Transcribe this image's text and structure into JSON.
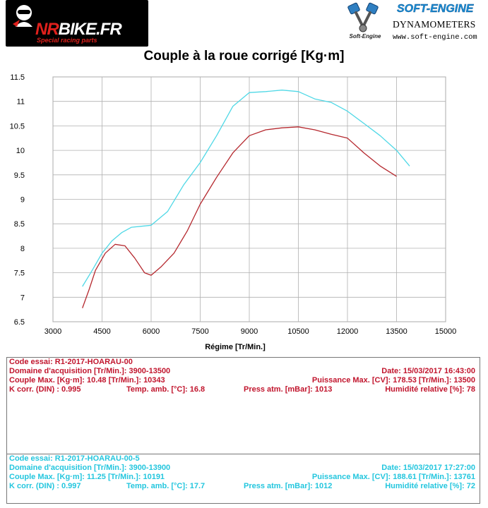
{
  "logos": {
    "left": {
      "brand_prefix": "NR",
      "brand_suffix": "BIKE.FR",
      "tagline": "Special racing parts"
    },
    "right": {
      "name": "SOFT-ENGINE",
      "subtitle": "DYNAMOMETERS",
      "url": "www.soft-engine.com",
      "emblem_text": "Soft-Engine"
    }
  },
  "colors": {
    "run1": "#b5282e",
    "run2": "#4fd8e6",
    "grid": "#b0b0b0",
    "red_text": "#c1152d",
    "cyan_text": "#23c6de"
  },
  "chart_data": {
    "type": "line",
    "title": "Couple à la roue corrigé [Kg·m]",
    "xlabel": "Régime [Tr/Min.]",
    "ylabel": "",
    "xlim": [
      3000,
      15000
    ],
    "ylim": [
      6.5,
      11.5
    ],
    "x_ticks": [
      3000,
      4500,
      6000,
      7500,
      9000,
      10500,
      12000,
      13500,
      15000
    ],
    "y_ticks": [
      6.5,
      7,
      7.5,
      8,
      8.5,
      9,
      9.5,
      10,
      10.5,
      11,
      11.5
    ],
    "x_tick_labels": [
      "3000",
      "4500",
      "6000",
      "7500",
      "9000",
      "10500",
      "12000",
      "13500",
      "15000"
    ],
    "y_tick_labels": [
      "6.5",
      "7",
      "7.5",
      "8",
      "8.5",
      "9",
      "9.5",
      "10",
      "10.5",
      "11",
      "11.5"
    ],
    "grid": true,
    "series": [
      {
        "color": "#b5282e",
        "x": [
          3900,
          4100,
          4300,
          4600,
          4900,
          5200,
          5500,
          5800,
          6000,
          6300,
          6700,
          7100,
          7500,
          8000,
          8500,
          9000,
          9500,
          10000,
          10500,
          11000,
          11500,
          12000,
          12500,
          13000,
          13500
        ],
        "y": [
          6.78,
          7.15,
          7.55,
          7.9,
          8.08,
          8.05,
          7.8,
          7.5,
          7.45,
          7.62,
          7.9,
          8.35,
          8.9,
          9.45,
          9.95,
          10.3,
          10.42,
          10.46,
          10.48,
          10.42,
          10.33,
          10.25,
          9.95,
          9.68,
          9.47
        ]
      },
      {
        "color": "#4fd8e6",
        "x": [
          3900,
          4200,
          4500,
          4800,
          5100,
          5400,
          5700,
          6000,
          6500,
          7000,
          7500,
          8000,
          8500,
          9000,
          9500,
          10000,
          10500,
          11000,
          11500,
          12000,
          12500,
          13000,
          13500,
          13900
        ],
        "y": [
          7.22,
          7.55,
          7.9,
          8.15,
          8.32,
          8.43,
          8.45,
          8.47,
          8.75,
          9.3,
          9.75,
          10.3,
          10.9,
          11.18,
          11.2,
          11.23,
          11.2,
          11.05,
          10.98,
          10.8,
          10.55,
          10.3,
          10.0,
          9.68
        ]
      }
    ]
  },
  "runs": [
    {
      "code": "Code essai: R1-2017-HOARAU-00",
      "domaine": "Domaine d'acquisition [Tr/Min.]: 3900-13500",
      "date": "Date: 15/03/2017   16:43:00",
      "couple": "Couple Max. [Kg·m]: 10.48  [Tr/Min.]: 10343",
      "puissance": "Puissance Max. [CV]: 178.53  [Tr/Min.]: 13500",
      "kcorr": "K corr. (DIN) : 0.995",
      "temp": "Temp. amb. [°C]: 16.8",
      "press": "Press atm. [mBar]: 1013",
      "humidite": "Humidité relative [%]: 78"
    },
    {
      "code": "Code essai: R1-2017-HOARAU-00-5",
      "domaine": "Domaine d'acquisition [Tr/Min.]: 3900-13900",
      "date": "Date: 15/03/2017   17:27:00",
      "couple": "Couple Max. [Kg·m]: 11.25  [Tr/Min.]: 10191",
      "puissance": "Puissance Max. [CV]: 188.61  [Tr/Min.]: 13761",
      "kcorr": "K corr. (DIN) : 0.997",
      "temp": "Temp. amb. [°C]: 17.7",
      "press": "Press atm. [mBar]: 1012",
      "humidite": "Humidité relative [%]: 72"
    }
  ]
}
